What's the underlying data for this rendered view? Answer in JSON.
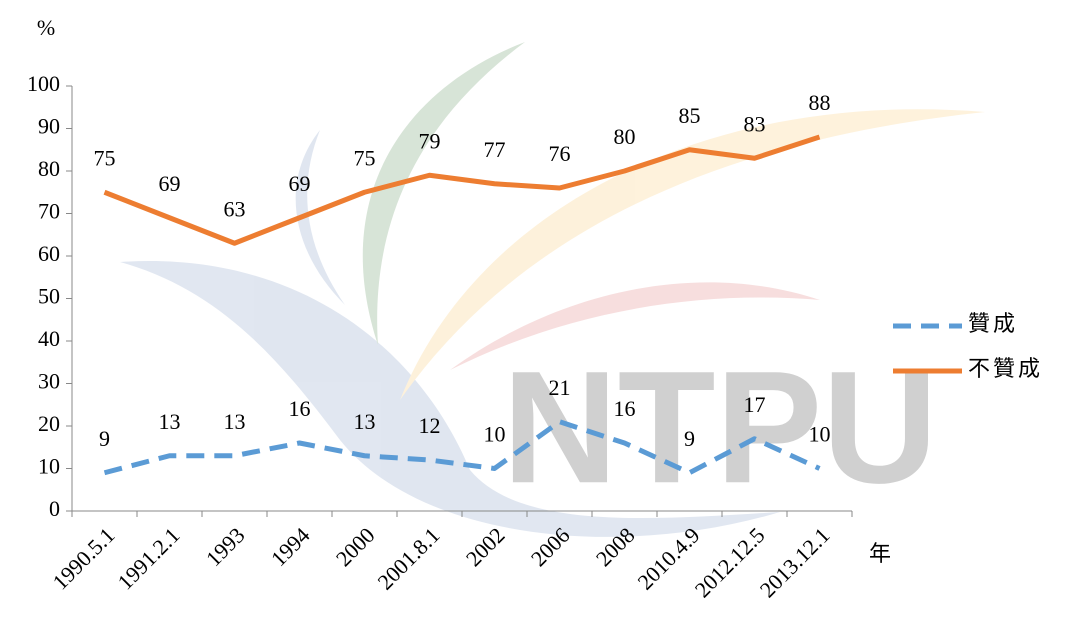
{
  "chart_data": {
    "type": "line",
    "ylabel": "%",
    "xlabel": "年",
    "watermark": "NTPU",
    "categories": [
      "1990.5.1",
      "1991.2.1",
      "1993",
      "1994",
      "2000",
      "2001.8.1",
      "2002",
      "2006",
      "2008",
      "2010.4.9",
      "2012.12.5",
      "2013.12.1"
    ],
    "series": [
      {
        "name": "贊成",
        "color": "#5b9bd5",
        "dashed": true,
        "values": [
          9,
          13,
          13,
          16,
          13,
          12,
          10,
          21,
          16,
          9,
          17,
          10
        ]
      },
      {
        "name": "不贊成",
        "color": "#ed7d31",
        "dashed": false,
        "values": [
          75,
          69,
          63,
          69,
          75,
          79,
          77,
          76,
          80,
          85,
          83,
          88
        ]
      }
    ],
    "ylim": [
      0,
      100
    ],
    "yticks": [
      0,
      10,
      20,
      30,
      40,
      50,
      60,
      70,
      80,
      90,
      100
    ],
    "grid": false,
    "legend": "right"
  }
}
